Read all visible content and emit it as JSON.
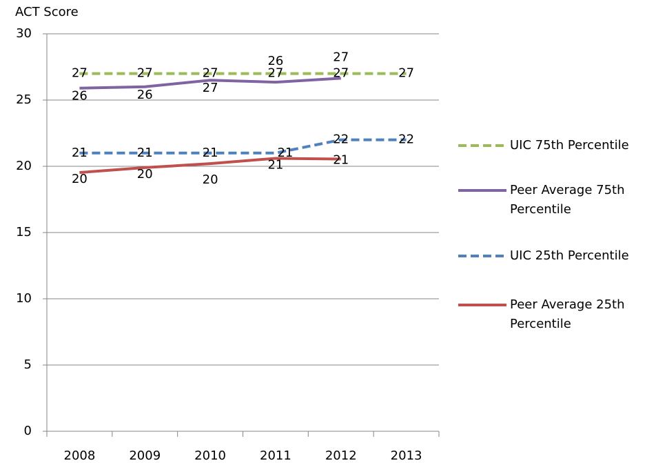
{
  "chart_data": {
    "type": "line",
    "y_label": "ACT Score",
    "categories": [
      "2008",
      "2009",
      "2010",
      "2011",
      "2012",
      "2013"
    ],
    "ylim": [
      0,
      30
    ],
    "yticks": [
      0,
      5,
      10,
      15,
      20,
      25,
      30
    ],
    "grid": true,
    "legend": "right",
    "series": [
      {
        "name": "UIC 75th Percentile",
        "color": "#9bbb59",
        "style": "dashed",
        "values": [
          27,
          27,
          27,
          27,
          27,
          27
        ]
      },
      {
        "name": "Peer Average 75th Percentile",
        "color": "#8064a2",
        "style": "solid",
        "values": [
          25.9,
          26.0,
          26.5,
          26.35,
          26.65,
          null
        ],
        "value_labels": [
          "26",
          "26",
          "27",
          "26",
          "27",
          null
        ]
      },
      {
        "name": "UIC 25th Percentile",
        "color": "#4f81bd",
        "style": "dashed",
        "values": [
          21,
          21,
          21,
          21,
          22,
          22
        ]
      },
      {
        "name": "Peer Average 25th Percentile",
        "color": "#c0504d",
        "style": "solid",
        "values": [
          19.53,
          19.9,
          20.2,
          20.6,
          20.55,
          null
        ],
        "value_labels": [
          "20",
          "20",
          "20",
          "21",
          "21",
          null
        ]
      }
    ]
  }
}
